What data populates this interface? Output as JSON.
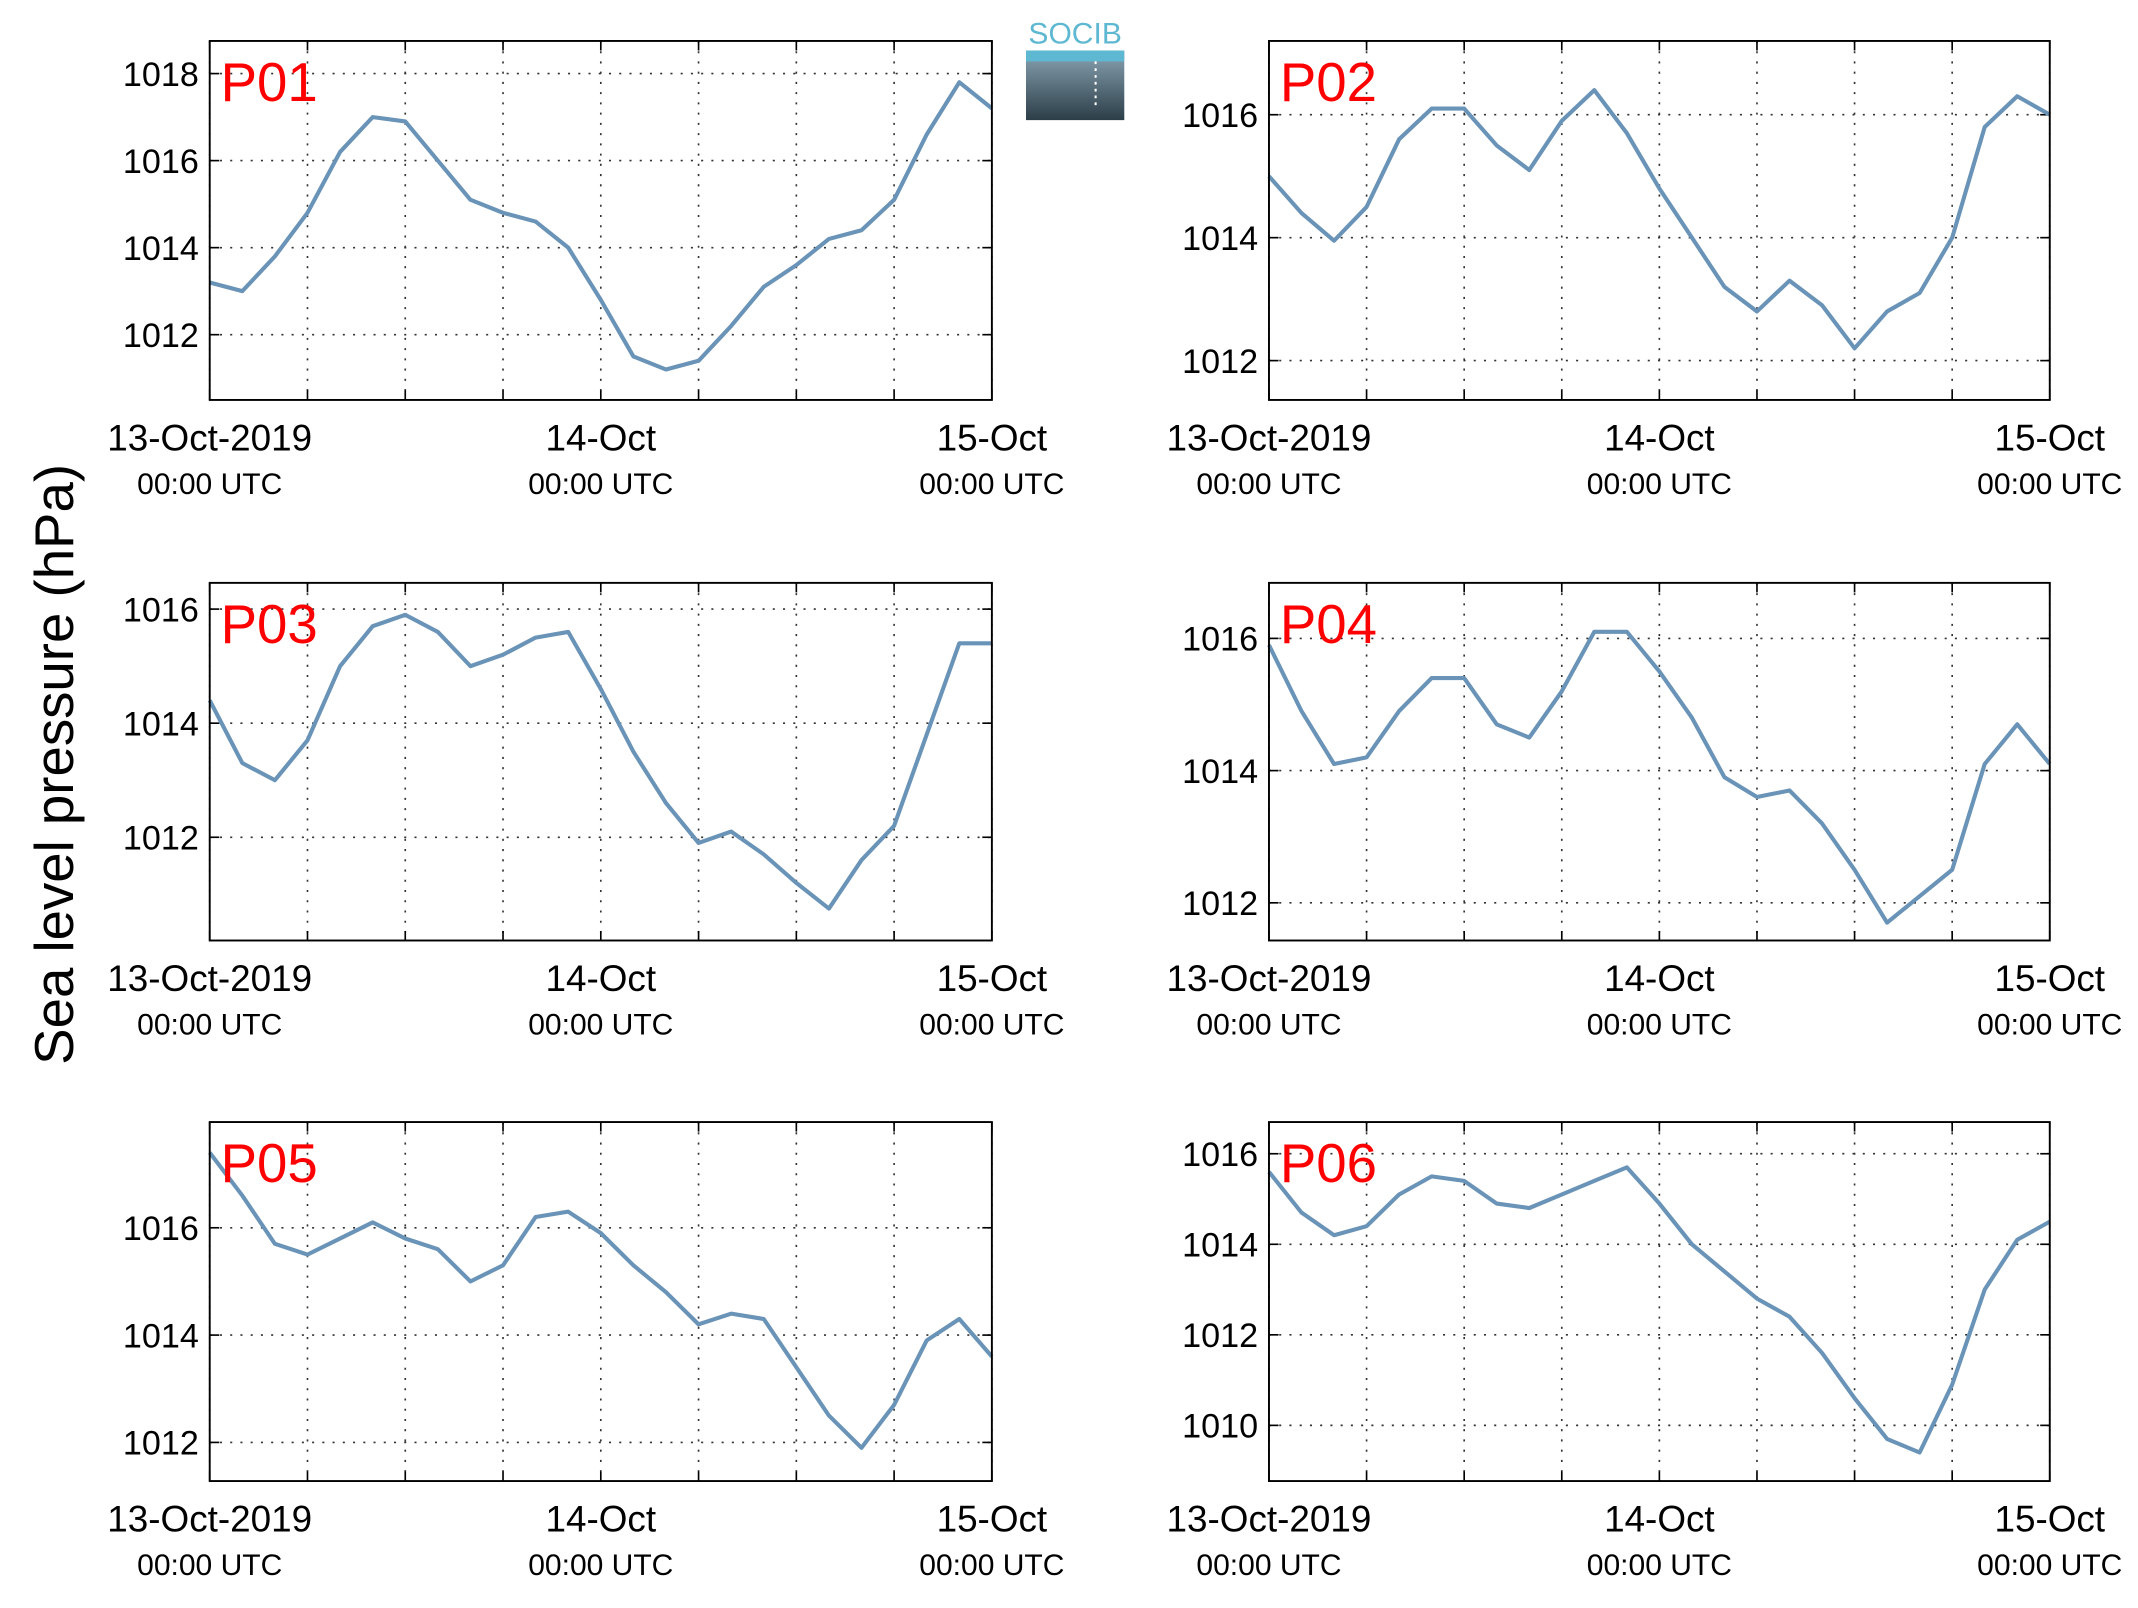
{
  "ylabel": "Sea level pressure (hPa)",
  "logo": "SOCIB",
  "chart_data": [
    {
      "type": "line",
      "title": "P01",
      "color": "#6a93b8",
      "grid": true,
      "x": [
        "2019-10-13T00:00Z",
        "2019-10-13T02:00Z",
        "2019-10-13T04:00Z",
        "2019-10-13T06:00Z",
        "2019-10-13T08:00Z",
        "2019-10-13T10:00Z",
        "2019-10-13T12:00Z",
        "2019-10-13T14:00Z",
        "2019-10-13T16:00Z",
        "2019-10-13T18:00Z",
        "2019-10-13T20:00Z",
        "2019-10-13T22:00Z",
        "2019-10-14T00:00Z",
        "2019-10-14T02:00Z",
        "2019-10-14T04:00Z",
        "2019-10-14T06:00Z",
        "2019-10-14T08:00Z",
        "2019-10-14T10:00Z",
        "2019-10-14T12:00Z",
        "2019-10-14T14:00Z",
        "2019-10-14T16:00Z",
        "2019-10-14T18:00Z",
        "2019-10-14T20:00Z",
        "2019-10-14T22:00Z",
        "2019-10-15T00:00Z"
      ],
      "values": [
        1013.2,
        1013.0,
        1013.8,
        1014.8,
        1016.2,
        1017.0,
        1016.9,
        1016.0,
        1015.1,
        1014.8,
        1014.6,
        1014.0,
        1012.8,
        1011.5,
        1011.2,
        1011.4,
        1012.2,
        1013.1,
        1013.6,
        1014.2,
        1014.4,
        1015.1,
        1016.6,
        1017.8,
        1017.2
      ],
      "xlim": [
        "2019-10-13T00:00Z",
        "2019-10-15T00:00Z"
      ],
      "xticks": [
        {
          "value": "2019-10-13T00:00Z",
          "label": "13-Oct-2019",
          "sublabel": "00:00 UTC"
        },
        {
          "value": "2019-10-14T00:00Z",
          "label": "14-Oct",
          "sublabel": "00:00 UTC"
        },
        {
          "value": "2019-10-15T00:00Z",
          "label": "15-Oct",
          "sublabel": "00:00 UTC"
        }
      ],
      "minor_xticks": [
        "2019-10-13T06:00Z",
        "2019-10-13T12:00Z",
        "2019-10-13T18:00Z",
        "2019-10-14T06:00Z",
        "2019-10-14T12:00Z",
        "2019-10-14T18:00Z"
      ],
      "ylim": [
        1010.5,
        1018.75
      ],
      "yticks": [
        1012,
        1014,
        1016,
        1018
      ]
    },
    {
      "type": "line",
      "title": "P02",
      "color": "#6a93b8",
      "grid": true,
      "x": [
        "2019-10-13T00:00Z",
        "2019-10-13T02:00Z",
        "2019-10-13T04:00Z",
        "2019-10-13T06:00Z",
        "2019-10-13T08:00Z",
        "2019-10-13T10:00Z",
        "2019-10-13T12:00Z",
        "2019-10-13T14:00Z",
        "2019-10-13T16:00Z",
        "2019-10-13T18:00Z",
        "2019-10-13T20:00Z",
        "2019-10-13T22:00Z",
        "2019-10-14T00:00Z",
        "2019-10-14T02:00Z",
        "2019-10-14T04:00Z",
        "2019-10-14T06:00Z",
        "2019-10-14T08:00Z",
        "2019-10-14T10:00Z",
        "2019-10-14T12:00Z",
        "2019-10-14T14:00Z",
        "2019-10-14T16:00Z",
        "2019-10-14T18:00Z",
        "2019-10-14T20:00Z",
        "2019-10-14T22:00Z",
        "2019-10-15T00:00Z"
      ],
      "values": [
        1015.0,
        1014.4,
        1013.95,
        1014.5,
        1015.6,
        1016.1,
        1016.1,
        1015.5,
        1015.1,
        1015.9,
        1016.4,
        1015.7,
        1014.8,
        1014.0,
        1013.2,
        1012.8,
        1013.3,
        1012.9,
        1012.2,
        1012.8,
        1013.1,
        1014.0,
        1015.8,
        1016.3,
        1016.0
      ],
      "xlim": [
        "2019-10-13T00:00Z",
        "2019-10-15T00:00Z"
      ],
      "xticks": [
        {
          "value": "2019-10-13T00:00Z",
          "label": "13-Oct-2019",
          "sublabel": "00:00 UTC"
        },
        {
          "value": "2019-10-14T00:00Z",
          "label": "14-Oct",
          "sublabel": "00:00 UTC"
        },
        {
          "value": "2019-10-15T00:00Z",
          "label": "15-Oct",
          "sublabel": "00:00 UTC"
        }
      ],
      "minor_xticks": [
        "2019-10-13T06:00Z",
        "2019-10-13T12:00Z",
        "2019-10-13T18:00Z",
        "2019-10-14T06:00Z",
        "2019-10-14T12:00Z",
        "2019-10-14T18:00Z"
      ],
      "ylim": [
        1011.36,
        1017.2
      ],
      "yticks": [
        1012,
        1014,
        1016
      ]
    },
    {
      "type": "line",
      "title": "P03",
      "color": "#6a93b8",
      "grid": true,
      "x": [
        "2019-10-13T00:00Z",
        "2019-10-13T02:00Z",
        "2019-10-13T04:00Z",
        "2019-10-13T06:00Z",
        "2019-10-13T08:00Z",
        "2019-10-13T10:00Z",
        "2019-10-13T12:00Z",
        "2019-10-13T14:00Z",
        "2019-10-13T16:00Z",
        "2019-10-13T18:00Z",
        "2019-10-13T20:00Z",
        "2019-10-13T22:00Z",
        "2019-10-14T00:00Z",
        "2019-10-14T02:00Z",
        "2019-10-14T04:00Z",
        "2019-10-14T06:00Z",
        "2019-10-14T08:00Z",
        "2019-10-14T10:00Z",
        "2019-10-14T12:00Z",
        "2019-10-14T14:00Z",
        "2019-10-14T16:00Z",
        "2019-10-14T18:00Z",
        "2019-10-14T20:00Z",
        "2019-10-14T22:00Z",
        "2019-10-15T00:00Z"
      ],
      "values": [
        1014.4,
        1013.3,
        1013.0,
        1013.7,
        1015.0,
        1015.7,
        1015.9,
        1015.6,
        1015.0,
        1015.2,
        1015.5,
        1015.6,
        1014.6,
        1013.5,
        1012.6,
        1011.9,
        1012.1,
        1011.7,
        1011.2,
        1010.75,
        1011.6,
        1012.2,
        1013.8,
        1015.4,
        1015.4
      ],
      "xlim": [
        "2019-10-13T00:00Z",
        "2019-10-15T00:00Z"
      ],
      "xticks": [
        {
          "value": "2019-10-13T00:00Z",
          "label": "13-Oct-2019",
          "sublabel": "00:00 UTC"
        },
        {
          "value": "2019-10-14T00:00Z",
          "label": "14-Oct",
          "sublabel": "00:00 UTC"
        },
        {
          "value": "2019-10-15T00:00Z",
          "label": "15-Oct",
          "sublabel": "00:00 UTC"
        }
      ],
      "minor_xticks": [
        "2019-10-13T06:00Z",
        "2019-10-13T12:00Z",
        "2019-10-13T18:00Z",
        "2019-10-14T06:00Z",
        "2019-10-14T12:00Z",
        "2019-10-14T18:00Z"
      ],
      "ylim": [
        1010.19,
        1016.46
      ],
      "yticks": [
        1012,
        1014,
        1016
      ]
    },
    {
      "type": "line",
      "title": "P04",
      "color": "#6a93b8",
      "grid": true,
      "x": [
        "2019-10-13T00:00Z",
        "2019-10-13T02:00Z",
        "2019-10-13T04:00Z",
        "2019-10-13T06:00Z",
        "2019-10-13T08:00Z",
        "2019-10-13T10:00Z",
        "2019-10-13T12:00Z",
        "2019-10-13T14:00Z",
        "2019-10-13T16:00Z",
        "2019-10-13T18:00Z",
        "2019-10-13T20:00Z",
        "2019-10-13T22:00Z",
        "2019-10-14T00:00Z",
        "2019-10-14T02:00Z",
        "2019-10-14T04:00Z",
        "2019-10-14T06:00Z",
        "2019-10-14T08:00Z",
        "2019-10-14T10:00Z",
        "2019-10-14T12:00Z",
        "2019-10-14T14:00Z",
        "2019-10-14T16:00Z",
        "2019-10-14T18:00Z",
        "2019-10-14T20:00Z",
        "2019-10-14T22:00Z",
        "2019-10-15T00:00Z"
      ],
      "values": [
        1015.9,
        1014.9,
        1014.1,
        1014.2,
        1014.9,
        1015.4,
        1015.4,
        1014.7,
        1014.5,
        1015.2,
        1016.1,
        1016.1,
        1015.5,
        1014.8,
        1013.9,
        1013.6,
        1013.7,
        1013.2,
        1012.5,
        1011.7,
        1012.1,
        1012.5,
        1014.1,
        1014.7,
        1014.1
      ],
      "xlim": [
        "2019-10-13T00:00Z",
        "2019-10-15T00:00Z"
      ],
      "xticks": [
        {
          "value": "2019-10-13T00:00Z",
          "label": "13-Oct-2019",
          "sublabel": "00:00 UTC"
        },
        {
          "value": "2019-10-14T00:00Z",
          "label": "14-Oct",
          "sublabel": "00:00 UTC"
        },
        {
          "value": "2019-10-15T00:00Z",
          "label": "15-Oct",
          "sublabel": "00:00 UTC"
        }
      ],
      "minor_xticks": [
        "2019-10-13T06:00Z",
        "2019-10-13T12:00Z",
        "2019-10-13T18:00Z",
        "2019-10-14T06:00Z",
        "2019-10-14T12:00Z",
        "2019-10-14T18:00Z"
      ],
      "ylim": [
        1011.43,
        1016.84
      ],
      "yticks": [
        1012,
        1014,
        1016
      ]
    },
    {
      "type": "line",
      "title": "P05",
      "color": "#6a93b8",
      "grid": true,
      "x": [
        "2019-10-13T00:00Z",
        "2019-10-13T02:00Z",
        "2019-10-13T04:00Z",
        "2019-10-13T06:00Z",
        "2019-10-13T08:00Z",
        "2019-10-13T10:00Z",
        "2019-10-13T12:00Z",
        "2019-10-13T14:00Z",
        "2019-10-13T16:00Z",
        "2019-10-13T18:00Z",
        "2019-10-13T20:00Z",
        "2019-10-13T22:00Z",
        "2019-10-14T00:00Z",
        "2019-10-14T02:00Z",
        "2019-10-14T04:00Z",
        "2019-10-14T06:00Z",
        "2019-10-14T08:00Z",
        "2019-10-14T10:00Z",
        "2019-10-14T12:00Z",
        "2019-10-14T14:00Z",
        "2019-10-14T16:00Z",
        "2019-10-14T18:00Z",
        "2019-10-14T20:00Z",
        "2019-10-14T22:00Z",
        "2019-10-15T00:00Z"
      ],
      "values": [
        1017.4,
        1016.6,
        1015.7,
        1015.5,
        1015.8,
        1016.1,
        1015.8,
        1015.6,
        1015.0,
        1015.3,
        1016.2,
        1016.3,
        1015.9,
        1015.3,
        1014.8,
        1014.2,
        1014.4,
        1014.3,
        1013.4,
        1012.5,
        1011.9,
        1012.7,
        1013.9,
        1014.3,
        1013.6
      ],
      "xlim": [
        "2019-10-13T00:00Z",
        "2019-10-15T00:00Z"
      ],
      "xticks": [
        {
          "value": "2019-10-13T00:00Z",
          "label": "13-Oct-2019",
          "sublabel": "00:00 UTC"
        },
        {
          "value": "2019-10-14T00:00Z",
          "label": "14-Oct",
          "sublabel": "00:00 UTC"
        },
        {
          "value": "2019-10-15T00:00Z",
          "label": "15-Oct",
          "sublabel": "00:00 UTC"
        }
      ],
      "minor_xticks": [
        "2019-10-13T06:00Z",
        "2019-10-13T12:00Z",
        "2019-10-13T18:00Z",
        "2019-10-14T06:00Z",
        "2019-10-14T12:00Z",
        "2019-10-14T18:00Z"
      ],
      "ylim": [
        1011.28,
        1017.97
      ],
      "yticks": [
        1012,
        1014,
        1016
      ]
    },
    {
      "type": "line",
      "title": "P06",
      "color": "#6a93b8",
      "grid": true,
      "x": [
        "2019-10-13T00:00Z",
        "2019-10-13T02:00Z",
        "2019-10-13T04:00Z",
        "2019-10-13T06:00Z",
        "2019-10-13T08:00Z",
        "2019-10-13T10:00Z",
        "2019-10-13T12:00Z",
        "2019-10-13T14:00Z",
        "2019-10-13T16:00Z",
        "2019-10-13T18:00Z",
        "2019-10-13T20:00Z",
        "2019-10-13T22:00Z",
        "2019-10-14T00:00Z",
        "2019-10-14T02:00Z",
        "2019-10-14T04:00Z",
        "2019-10-14T06:00Z",
        "2019-10-14T08:00Z",
        "2019-10-14T10:00Z",
        "2019-10-14T12:00Z",
        "2019-10-14T14:00Z",
        "2019-10-14T16:00Z",
        "2019-10-14T18:00Z",
        "2019-10-14T20:00Z",
        "2019-10-14T22:00Z",
        "2019-10-15T00:00Z"
      ],
      "values": [
        1015.6,
        1014.7,
        1014.2,
        1014.4,
        1015.1,
        1015.5,
        1015.4,
        1014.9,
        1014.8,
        1015.1,
        1015.4,
        1015.7,
        1014.9,
        1014.0,
        1013.4,
        1012.8,
        1012.4,
        1011.6,
        1010.6,
        1009.7,
        1009.4,
        1010.9,
        1013.0,
        1014.1,
        1014.5
      ],
      "xlim": [
        "2019-10-13T00:00Z",
        "2019-10-15T00:00Z"
      ],
      "xticks": [
        {
          "value": "2019-10-13T00:00Z",
          "label": "13-Oct-2019",
          "sublabel": "00:00 UTC"
        },
        {
          "value": "2019-10-14T00:00Z",
          "label": "14-Oct",
          "sublabel": "00:00 UTC"
        },
        {
          "value": "2019-10-15T00:00Z",
          "label": "15-Oct",
          "sublabel": "00:00 UTC"
        }
      ],
      "minor_xticks": [
        "2019-10-13T06:00Z",
        "2019-10-13T12:00Z",
        "2019-10-13T18:00Z",
        "2019-10-14T06:00Z",
        "2019-10-14T12:00Z",
        "2019-10-14T18:00Z"
      ],
      "ylim": [
        1008.77,
        1016.7
      ],
      "yticks": [
        1010,
        1012,
        1014,
        1016
      ]
    }
  ]
}
